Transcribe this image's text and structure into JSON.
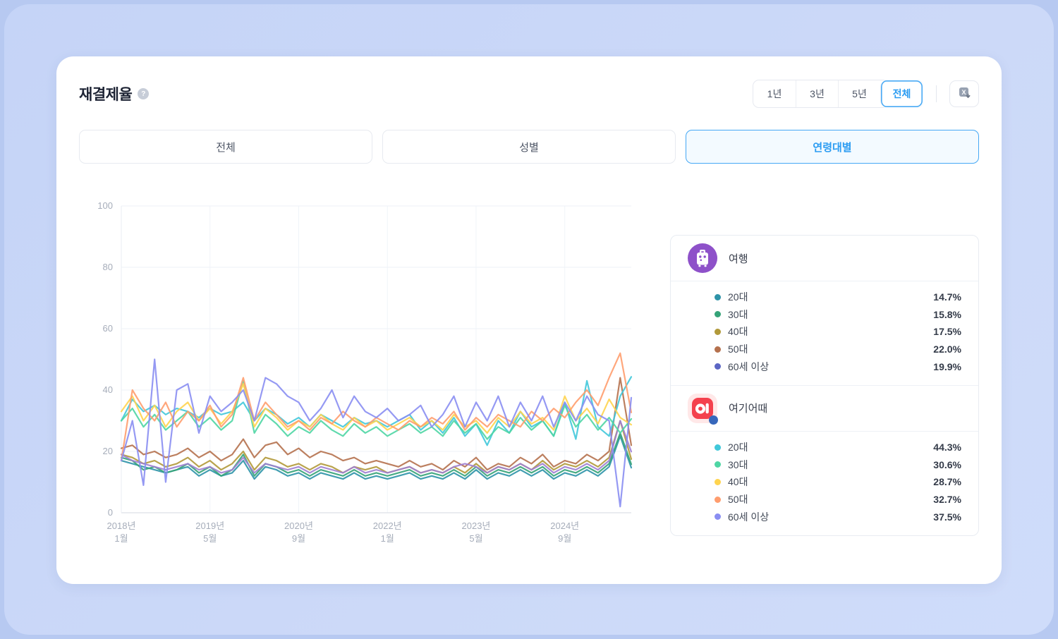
{
  "card": {
    "title": "재결제율",
    "help": "?",
    "range_buttons": [
      "1년",
      "3년",
      "5년",
      "전체"
    ],
    "range_selected": "전체",
    "tabs": [
      "전체",
      "성별",
      "연령대별"
    ],
    "tab_selected": "연령대별"
  },
  "chart_data": {
    "type": "line",
    "title": "재결제율",
    "ylim": [
      0,
      100
    ],
    "y_ticks": [
      0,
      20,
      40,
      60,
      80,
      100
    ],
    "grid": true,
    "legend_position": "right-panel",
    "x": [
      "2018-01",
      "2018-03",
      "2018-05",
      "2018-07",
      "2018-09",
      "2018-11",
      "2019-01",
      "2019-03",
      "2019-05",
      "2019-07",
      "2019-09",
      "2019-11",
      "2020-01",
      "2020-03",
      "2020-05",
      "2020-07",
      "2020-09",
      "2020-11",
      "2021-01",
      "2021-03",
      "2021-05",
      "2021-07",
      "2021-09",
      "2021-11",
      "2022-01",
      "2022-03",
      "2022-05",
      "2022-07",
      "2022-09",
      "2022-11",
      "2023-01",
      "2023-03",
      "2023-05",
      "2023-07",
      "2023-09",
      "2023-11",
      "2024-01",
      "2024-03",
      "2024-05",
      "2024-07",
      "2024-09",
      "2024-11",
      "2025-01",
      "2025-03",
      "2025-05",
      "2025-07",
      "2025-09"
    ],
    "x_ticks": [
      {
        "i": 0,
        "top": "2018년",
        "bottom": "1월"
      },
      {
        "i": 8,
        "top": "2019년",
        "bottom": "5월"
      },
      {
        "i": 16,
        "top": "2020년",
        "bottom": "9월"
      },
      {
        "i": 24,
        "top": "2022년",
        "bottom": "1월"
      },
      {
        "i": 32,
        "top": "2023년",
        "bottom": "5월"
      },
      {
        "i": 40,
        "top": "2024년",
        "bottom": "9월"
      }
    ],
    "series": [
      {
        "name": "여행 20대",
        "group": "여행",
        "color": "#2e93a8",
        "values": [
          17,
          16,
          15,
          14,
          13,
          14,
          15,
          12,
          14,
          12,
          13,
          17,
          11,
          15,
          14,
          12,
          13,
          11,
          13,
          12,
          11,
          13,
          11,
          12,
          11,
          12,
          13,
          11,
          12,
          11,
          13,
          11,
          14,
          11,
          13,
          12,
          14,
          12,
          14,
          11,
          13,
          12,
          14,
          12,
          15,
          25,
          14.7
        ]
      },
      {
        "name": "여행 30대",
        "group": "여행",
        "color": "#35a378",
        "values": [
          18,
          17,
          14,
          15,
          13,
          14,
          16,
          13,
          15,
          12,
          14,
          19,
          12,
          16,
          15,
          13,
          14,
          12,
          14,
          13,
          12,
          14,
          12,
          13,
          12,
          13,
          14,
          12,
          13,
          12,
          14,
          12,
          15,
          12,
          14,
          13,
          15,
          13,
          15,
          12,
          14,
          13,
          15,
          13,
          16,
          26,
          15.8
        ]
      },
      {
        "name": "여행 40대",
        "group": "여행",
        "color": "#b1993a",
        "values": [
          19,
          18,
          16,
          17,
          15,
          16,
          18,
          15,
          17,
          14,
          16,
          20,
          14,
          18,
          17,
          15,
          16,
          14,
          16,
          15,
          13,
          15,
          14,
          15,
          13,
          14,
          15,
          13,
          14,
          13,
          15,
          13,
          16,
          13,
          15,
          14,
          16,
          14,
          17,
          14,
          16,
          15,
          17,
          15,
          18,
          30,
          17.5
        ]
      },
      {
        "name": "여행 50대",
        "group": "여행",
        "color": "#b5714e",
        "values": [
          21,
          22,
          19,
          20,
          18,
          19,
          21,
          18,
          20,
          17,
          19,
          24,
          18,
          22,
          23,
          19,
          21,
          18,
          20,
          19,
          17,
          18,
          16,
          17,
          16,
          15,
          17,
          15,
          16,
          14,
          17,
          15,
          18,
          14,
          16,
          15,
          18,
          16,
          19,
          15,
          17,
          16,
          19,
          17,
          20,
          44,
          22
        ]
      },
      {
        "name": "여행 60세 이상",
        "group": "여행",
        "color": "#9e80d2",
        "values": [
          19,
          17,
          16,
          15,
          14,
          15,
          16,
          14,
          15,
          13,
          14,
          18,
          13,
          16,
          15,
          14,
          15,
          13,
          15,
          14,
          13,
          15,
          13,
          14,
          13,
          14,
          15,
          13,
          14,
          13,
          15,
          16,
          15,
          13,
          15,
          14,
          16,
          14,
          16,
          13,
          15,
          14,
          16,
          14,
          17,
          30,
          19.9
        ]
      },
      {
        "name": "여기어때 20대",
        "group": "여기어때",
        "color": "#41c8da",
        "values": [
          30,
          37,
          33,
          35,
          32,
          34,
          33,
          31,
          34,
          32,
          33,
          36,
          30,
          34,
          32,
          29,
          31,
          28,
          32,
          30,
          28,
          31,
          29,
          30,
          28,
          30,
          32,
          27,
          30,
          26,
          31,
          25,
          29,
          22,
          30,
          26,
          33,
          28,
          30,
          25,
          36,
          24,
          43,
          28,
          25,
          38,
          44.3
        ]
      },
      {
        "name": "여기어때 30대",
        "group": "여기어때",
        "color": "#4fd6a4",
        "values": [
          30,
          34,
          28,
          32,
          27,
          30,
          33,
          28,
          31,
          27,
          30,
          43,
          26,
          32,
          29,
          25,
          28,
          26,
          30,
          27,
          25,
          29,
          26,
          28,
          25,
          27,
          29,
          26,
          28,
          25,
          30,
          26,
          29,
          24,
          28,
          26,
          31,
          27,
          30,
          25,
          35,
          28,
          32,
          27,
          31,
          26,
          30.6
        ]
      },
      {
        "name": "여기어때 40대",
        "group": "여기어때",
        "color": "#ffd44f",
        "values": [
          33,
          38,
          30,
          35,
          28,
          33,
          36,
          30,
          34,
          29,
          33,
          42,
          28,
          34,
          31,
          27,
          30,
          28,
          32,
          29,
          27,
          31,
          28,
          30,
          27,
          29,
          31,
          28,
          30,
          27,
          32,
          28,
          30,
          26,
          31,
          28,
          33,
          29,
          31,
          27,
          38,
          30,
          34,
          29,
          37,
          31,
          28.7
        ]
      },
      {
        "name": "여기어때 50대",
        "group": "여기어때",
        "color": "#ff9d6e",
        "values": [
          17,
          40,
          34,
          30,
          36,
          28,
          33,
          30,
          35,
          28,
          32,
          44,
          30,
          36,
          32,
          28,
          30,
          27,
          31,
          29,
          33,
          30,
          28,
          31,
          29,
          27,
          30,
          28,
          31,
          29,
          33,
          27,
          31,
          28,
          32,
          30,
          28,
          33,
          30,
          34,
          31,
          36,
          40,
          35,
          44,
          52,
          32.7
        ]
      },
      {
        "name": "여기어때 60세 이상",
        "group": "여기어때",
        "color": "#8a8ef2",
        "values": [
          17,
          30,
          9,
          50,
          10,
          40,
          42,
          26,
          38,
          33,
          36,
          40,
          30,
          44,
          42,
          38,
          36,
          30,
          34,
          40,
          31,
          38,
          33,
          31,
          34,
          30,
          32,
          35,
          28,
          32,
          38,
          28,
          36,
          30,
          38,
          28,
          36,
          30,
          38,
          28,
          36,
          30,
          38,
          32,
          30,
          2,
          37.5
        ]
      }
    ]
  },
  "legend": {
    "groups": [
      {
        "brand": "여행",
        "icon": "travel-bag-icon",
        "icon_bg": "#8e51c9",
        "items": [
          {
            "label": "20대",
            "value": "14.7%",
            "color": "#2e93a8"
          },
          {
            "label": "30대",
            "value": "15.8%",
            "color": "#35a378"
          },
          {
            "label": "40대",
            "value": "17.5%",
            "color": "#b1993a"
          },
          {
            "label": "50대",
            "value": "22.0%",
            "color": "#b5714e"
          },
          {
            "label": "60세 이상",
            "value": "19.9%",
            "color": "#5c66c4"
          }
        ]
      },
      {
        "brand": "여기어때",
        "icon": "yeogieottae-app-icon",
        "icon_bg": "#f4414d",
        "items": [
          {
            "label": "20대",
            "value": "44.3%",
            "color": "#41c8da"
          },
          {
            "label": "30대",
            "value": "30.6%",
            "color": "#4fd6a4"
          },
          {
            "label": "40대",
            "value": "28.7%",
            "color": "#ffd44f"
          },
          {
            "label": "50대",
            "value": "32.7%",
            "color": "#ff9d6e"
          },
          {
            "label": "60세 이상",
            "value": "37.5%",
            "color": "#8a8ef2"
          }
        ]
      }
    ]
  }
}
